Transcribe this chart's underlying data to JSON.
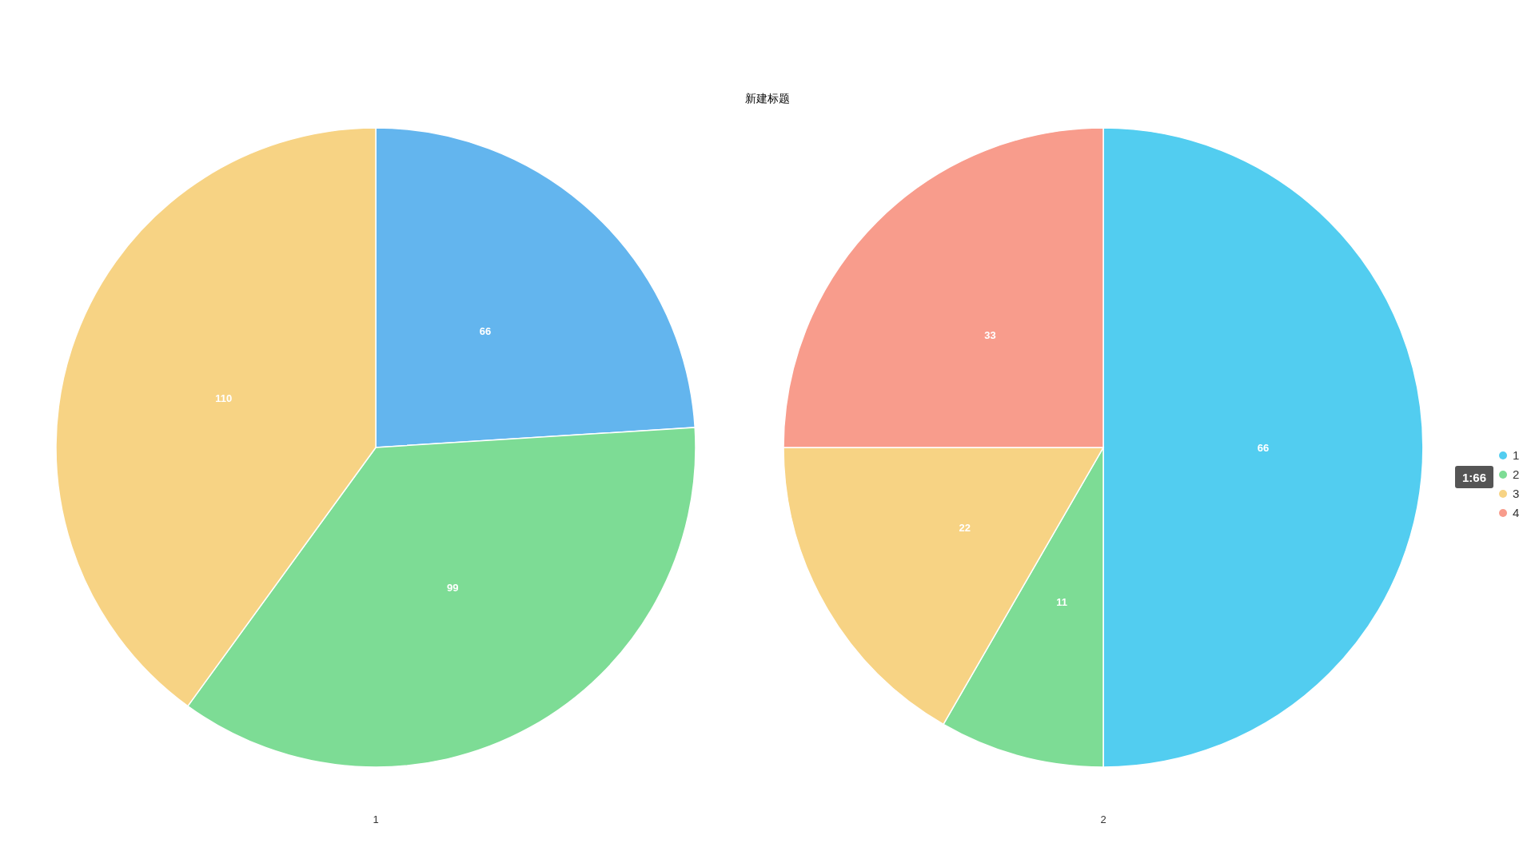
{
  "chart_data": [
    {
      "type": "pie",
      "title": "新建标题",
      "subtitle": "1",
      "categories": [
        null,
        null,
        null
      ],
      "values": [
        66,
        99,
        110
      ],
      "colors": [
        "#63b5ee",
        "#7ddc95",
        "#f7d384"
      ],
      "data_labels": true,
      "legend": false
    },
    {
      "type": "pie",
      "subtitle": "2",
      "categories": [
        "1",
        "2",
        "3",
        "4"
      ],
      "values": [
        66,
        11,
        22,
        33
      ],
      "colors": [
        "#52cdf0",
        "#7ddc95",
        "#f7d384",
        "#f89c8c"
      ],
      "data_labels": true,
      "legend": "right",
      "annotations": [
        "1:66"
      ]
    }
  ]
}
